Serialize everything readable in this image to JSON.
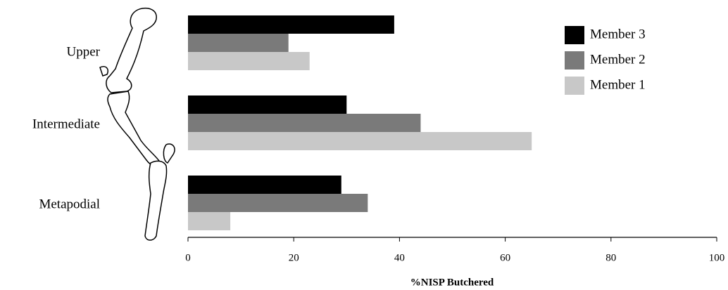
{
  "chart_data": {
    "type": "barh",
    "xlabel": "%NISP Butchered",
    "categories": [
      "Upper",
      "Intermediate",
      "Metapodial"
    ],
    "series": [
      {
        "name": "Member 3",
        "color": "#000000",
        "values": [
          39,
          30,
          29
        ]
      },
      {
        "name": "Member 2",
        "color": "#7a7a7a",
        "values": [
          19,
          44,
          34
        ]
      },
      {
        "name": "Member 1",
        "color": "#c8c8c8",
        "values": [
          23,
          65,
          8
        ]
      }
    ],
    "xlim": [
      0,
      100
    ],
    "xticks": [
      0,
      20,
      40,
      60,
      80,
      100
    ],
    "legend": "upper right"
  }
}
